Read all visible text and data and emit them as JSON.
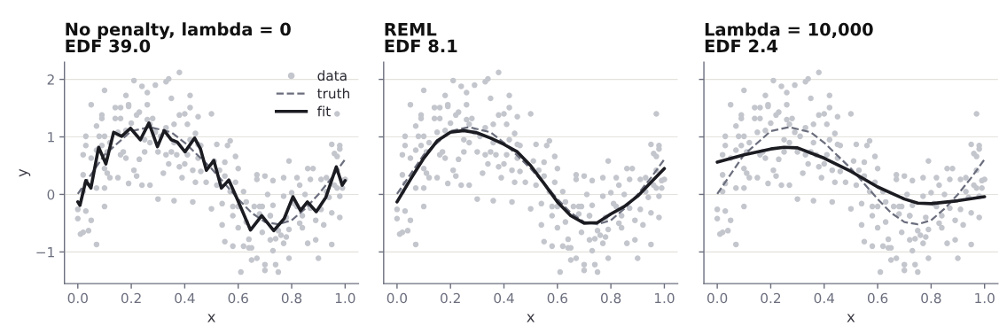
{
  "chart_data": [
    {
      "type": "scatter",
      "title": "No penalty, lambda = 0",
      "subtitle": "EDF 39.0",
      "xlabel": "x",
      "ylabel": "y",
      "xlim": [
        -0.05,
        1.05
      ],
      "ylim": [
        -1.55,
        2.3
      ],
      "xticks": [
        {
          "value": 0,
          "label": "0.0"
        },
        {
          "value": 0.2,
          "label": "0.2"
        },
        {
          "value": 0.4,
          "label": "0.4"
        },
        {
          "value": 0.6,
          "label": "0.6"
        },
        {
          "value": 0.8,
          "label": "0.8"
        },
        {
          "value": 1,
          "label": "1.0"
        }
      ],
      "yticks": [
        {
          "value": -1,
          "label": "−1"
        },
        0,
        1,
        2
      ],
      "grid": "y",
      "legend": "top right",
      "series": [
        {
          "name": "data",
          "marker": "circle",
          "color": "#c4c6cd",
          "x": [
            0.0,
            0.0,
            0.02,
            0.03,
            0.01,
            0.02,
            0.04,
            0.05,
            0.07,
            0.02,
            0.03,
            0.03,
            0.05,
            0.05,
            0.02,
            0.03,
            0.07,
            0.07,
            0.07,
            0.08,
            0.09,
            0.09,
            0.1,
            0.09,
            0.1,
            0.1,
            0.1,
            0.1,
            0.11,
            0.11,
            0.12,
            0.12,
            0.14,
            0.14,
            0.15,
            0.15,
            0.16,
            0.16,
            0.16,
            0.17,
            0.18,
            0.18,
            0.18,
            0.19,
            0.19,
            0.19,
            0.2,
            0.21,
            0.21,
            0.22,
            0.22,
            0.23,
            0.23,
            0.24,
            0.24,
            0.25,
            0.25,
            0.26,
            0.26,
            0.26,
            0.27,
            0.27,
            0.27,
            0.28,
            0.29,
            0.29,
            0.3,
            0.3,
            0.31,
            0.32,
            0.33,
            0.33,
            0.33,
            0.34,
            0.34,
            0.35,
            0.35,
            0.36,
            0.36,
            0.36,
            0.37,
            0.38,
            0.38,
            0.38,
            0.39,
            0.4,
            0.4,
            0.41,
            0.41,
            0.42,
            0.42,
            0.42,
            0.43,
            0.43,
            0.44,
            0.44,
            0.45,
            0.45,
            0.45,
            0.46,
            0.46,
            0.48,
            0.5,
            0.5,
            0.51,
            0.52,
            0.52,
            0.53,
            0.54,
            0.54,
            0.55,
            0.55,
            0.55,
            0.56,
            0.57,
            0.57,
            0.58,
            0.58,
            0.58,
            0.59,
            0.59,
            0.6,
            0.6,
            0.6,
            0.61,
            0.62,
            0.62,
            0.63,
            0.63,
            0.64,
            0.64,
            0.65,
            0.65,
            0.66,
            0.67,
            0.67,
            0.67,
            0.68,
            0.68,
            0.69,
            0.69,
            0.7,
            0.7,
            0.7,
            0.71,
            0.72,
            0.72,
            0.72,
            0.73,
            0.73,
            0.73,
            0.74,
            0.74,
            0.75,
            0.75,
            0.76,
            0.77,
            0.77,
            0.77,
            0.78,
            0.78,
            0.79,
            0.79,
            0.79,
            0.8,
            0.81,
            0.82,
            0.82,
            0.83,
            0.83,
            0.84,
            0.84,
            0.85,
            0.86,
            0.86,
            0.87,
            0.87,
            0.88,
            0.89,
            0.89,
            0.9,
            0.91,
            0.91,
            0.92,
            0.93,
            0.93,
            0.94,
            0.95,
            0.95,
            0.95,
            0.96,
            0.96,
            0.97,
            0.97,
            0.97,
            0.97,
            0.98,
            0.98,
            0.98,
            0.99,
            0.99,
            1.0,
            0.98
          ],
          "values": [
            -0.26,
            -0.42,
            0.34,
            -0.29,
            -0.69,
            -0.66,
            -0.63,
            -0.45,
            -0.87,
            0.69,
            1.01,
            0.85,
            1.56,
            0.63,
            0.05,
            0.19,
            0.11,
            1.19,
            0.77,
            1.01,
            1.32,
            1.38,
            1.81,
            0.85,
            0.45,
            0.11,
            -0.21,
            1.01,
            0.37,
            0.74,
            0.29,
            0.9,
            1.51,
            1.32,
            1.08,
            0.29,
            0.69,
            1.32,
            1.51,
            0.74,
            1.72,
            1.11,
            0.63,
            1.53,
            0.19,
            1.56,
            1.24,
            0.42,
            1.98,
            1.38,
            0.32,
            1.43,
            0.61,
            0.16,
            1.88,
            0.95,
            0.74,
            1.56,
            1.3,
            1.77,
            0.16,
            0.9,
            1.22,
            1.32,
            1.9,
            1.08,
            0.74,
            -0.08,
            1.01,
            0.37,
            1.96,
            1.16,
            0.69,
            2.01,
            0.53,
            0.74,
            1.67,
            -0.11,
            1.22,
            0.9,
            0.69,
            2.12,
            1.38,
            0.48,
            0.29,
            1.4,
            0.53,
            1.22,
            0.69,
            0.95,
            1.51,
            1.72,
            -0.13,
            0.42,
            1.06,
            0.21,
            1.35,
            0.87,
            0.63,
            0.85,
            0.4,
            0.21,
            1.4,
            -0.25,
            0.58,
            0.16,
            0.87,
            0.42,
            -0.53,
            -0.16,
            0.56,
            -0.82,
            0.32,
            0.85,
            0.05,
            0.93,
            -0.37,
            -0.9,
            -0.21,
            0.66,
            0.21,
            -0.58,
            0.45,
            -0.21,
            -1.35,
            0.05,
            -0.9,
            -0.48,
            -0.13,
            -0.78,
            -0.93,
            -1.14,
            -0.93,
            -0.21,
            0.34,
            0.26,
            -1.11,
            -0.34,
            -0.21,
            -0.21,
            -0.66,
            -1.22,
            0.32,
            -1.32,
            0.0,
            -0.37,
            -0.37,
            -0.79,
            0.24,
            -0.98,
            -0.19,
            -1.22,
            -0.77,
            -1.35,
            -0.63,
            -0.71,
            0.29,
            -0.85,
            -0.03,
            -0.4,
            -0.74,
            -0.61,
            0.58,
            -1.11,
            0.03,
            -0.16,
            0.29,
            -0.21,
            0.16,
            -0.5,
            -0.37,
            -0.58,
            0.0,
            -0.85,
            0.45,
            0.26,
            -0.24,
            0.45,
            -0.79,
            -0.45,
            -1.11,
            0.26,
            -0.26,
            -0.53,
            0.29,
            0.05,
            -0.05,
            -0.32,
            -0.87,
            0.87,
            0.71,
            0.16,
            0.66,
            1.4,
            0.42,
            0.11,
            0.79,
            0.85,
            -0.03,
            0.24,
            0.11,
            0.26,
            -0.4
          ]
        },
        {
          "name": "truth",
          "type": "line",
          "line_style": "dashed",
          "color": "#6b6e7d",
          "x": [
            0,
            0.1,
            0.2,
            0.27,
            0.35,
            0.4,
            0.5,
            0.6,
            0.65,
            0.7,
            0.75,
            0.8,
            0.85,
            0.9,
            0.95,
            1.0
          ],
          "values": [
            0.01,
            0.69,
            1.1,
            1.17,
            1.08,
            0.9,
            0.45,
            -0.08,
            -0.32,
            -0.48,
            -0.52,
            -0.45,
            -0.25,
            0.0,
            0.29,
            0.61
          ]
        },
        {
          "name": "fit",
          "type": "line",
          "line_style": "solid",
          "color": "#1b1b22",
          "x": [
            0,
            0.008,
            0.03,
            0.049,
            0.078,
            0.105,
            0.134,
            0.164,
            0.197,
            0.234,
            0.266,
            0.298,
            0.323,
            0.35,
            0.372,
            0.401,
            0.437,
            0.459,
            0.481,
            0.509,
            0.537,
            0.565,
            0.599,
            0.646,
            0.688,
            0.733,
            0.772,
            0.805,
            0.833,
            0.859,
            0.892,
            0.928,
            0.967,
            0.989,
            1.0
          ],
          "values": [
            -0.13,
            -0.19,
            0.24,
            0.11,
            0.82,
            0.53,
            1.08,
            1.01,
            1.15,
            0.95,
            1.24,
            0.83,
            1.11,
            0.95,
            0.91,
            0.74,
            0.98,
            0.79,
            0.42,
            0.59,
            0.11,
            0.25,
            -0.11,
            -0.62,
            -0.37,
            -0.63,
            -0.42,
            -0.04,
            -0.28,
            -0.13,
            -0.3,
            -0.05,
            0.48,
            0.16,
            0.24
          ]
        }
      ]
    },
    {
      "type": "scatter",
      "title": "REML",
      "subtitle": "EDF 8.1",
      "xlabel": "x",
      "xlim": [
        -0.05,
        1.05
      ],
      "ylim": [
        -1.55,
        2.3
      ],
      "xticks": [
        {
          "value": 0,
          "label": "0.0"
        },
        {
          "value": 0.2,
          "label": "0.2"
        },
        {
          "value": 0.4,
          "label": "0.4"
        },
        {
          "value": 0.6,
          "label": "0.6"
        },
        {
          "value": 0.8,
          "label": "0.8"
        },
        {
          "value": 1,
          "label": "1.0"
        }
      ],
      "yticks": [
        -1,
        0,
        1,
        2
      ],
      "grid": "y",
      "tick_labels": "x",
      "series": [
        {
          "marker": "circle",
          "color": "#c4c6cd",
          "x": [
            0.0,
            0.0,
            0.02,
            0.03,
            0.01,
            0.02,
            0.04,
            0.05,
            0.07,
            0.02,
            0.03,
            0.03,
            0.05,
            0.05,
            0.02,
            0.03,
            0.07,
            0.07,
            0.07,
            0.08,
            0.09,
            0.09,
            0.1,
            0.09,
            0.1,
            0.1,
            0.1,
            0.1,
            0.11,
            0.11,
            0.12,
            0.12,
            0.14,
            0.14,
            0.15,
            0.15,
            0.16,
            0.16,
            0.16,
            0.17,
            0.18,
            0.18,
            0.18,
            0.19,
            0.19,
            0.19,
            0.2,
            0.21,
            0.21,
            0.22,
            0.22,
            0.23,
            0.23,
            0.24,
            0.24,
            0.25,
            0.25,
            0.26,
            0.26,
            0.26,
            0.27,
            0.27,
            0.27,
            0.28,
            0.29,
            0.29,
            0.3,
            0.3,
            0.31,
            0.32,
            0.33,
            0.33,
            0.33,
            0.34,
            0.34,
            0.35,
            0.35,
            0.36,
            0.36,
            0.36,
            0.37,
            0.38,
            0.38,
            0.38,
            0.39,
            0.4,
            0.4,
            0.41,
            0.41,
            0.42,
            0.42,
            0.42,
            0.43,
            0.43,
            0.44,
            0.44,
            0.45,
            0.45,
            0.45,
            0.46,
            0.46,
            0.48,
            0.5,
            0.5,
            0.51,
            0.52,
            0.52,
            0.53,
            0.54,
            0.54,
            0.55,
            0.55,
            0.55,
            0.56,
            0.57,
            0.57,
            0.58,
            0.58,
            0.58,
            0.59,
            0.59,
            0.6,
            0.6,
            0.6,
            0.61,
            0.62,
            0.62,
            0.63,
            0.63,
            0.64,
            0.64,
            0.65,
            0.65,
            0.66,
            0.67,
            0.67,
            0.67,
            0.68,
            0.68,
            0.69,
            0.69,
            0.7,
            0.7,
            0.7,
            0.71,
            0.72,
            0.72,
            0.72,
            0.73,
            0.73,
            0.73,
            0.74,
            0.74,
            0.75,
            0.75,
            0.76,
            0.77,
            0.77,
            0.77,
            0.78,
            0.78,
            0.79,
            0.79,
            0.79,
            0.8,
            0.81,
            0.82,
            0.82,
            0.83,
            0.83,
            0.84,
            0.84,
            0.85,
            0.86,
            0.86,
            0.87,
            0.87,
            0.88,
            0.89,
            0.89,
            0.9,
            0.91,
            0.91,
            0.92,
            0.93,
            0.93,
            0.94,
            0.95,
            0.95,
            0.95,
            0.96,
            0.96,
            0.97,
            0.97,
            0.97,
            0.97,
            0.98,
            0.98,
            0.98,
            0.99,
            0.99,
            1.0,
            0.98
          ],
          "values": [
            -0.26,
            -0.42,
            0.34,
            -0.29,
            -0.69,
            -0.66,
            -0.63,
            -0.45,
            -0.87,
            0.69,
            1.01,
            0.85,
            1.56,
            0.63,
            0.05,
            0.19,
            0.11,
            1.19,
            0.77,
            1.01,
            1.32,
            1.38,
            1.81,
            0.85,
            0.45,
            0.11,
            -0.21,
            1.01,
            0.37,
            0.74,
            0.29,
            0.9,
            1.51,
            1.32,
            1.08,
            0.29,
            0.69,
            1.32,
            1.51,
            0.74,
            1.72,
            1.11,
            0.63,
            1.53,
            0.19,
            1.56,
            1.24,
            0.42,
            1.98,
            1.38,
            0.32,
            1.43,
            0.61,
            0.16,
            1.88,
            0.95,
            0.74,
            1.56,
            1.3,
            1.77,
            0.16,
            0.9,
            1.22,
            1.32,
            1.9,
            1.08,
            0.74,
            -0.08,
            1.01,
            0.37,
            1.96,
            1.16,
            0.69,
            2.01,
            0.53,
            0.74,
            1.67,
            -0.11,
            1.22,
            0.9,
            0.69,
            2.12,
            1.38,
            0.48,
            0.29,
            1.4,
            0.53,
            1.22,
            0.69,
            0.95,
            1.51,
            1.72,
            -0.13,
            0.42,
            1.06,
            0.21,
            1.35,
            0.87,
            0.63,
            0.85,
            0.4,
            0.21,
            1.4,
            -0.25,
            0.58,
            0.16,
            0.87,
            0.42,
            -0.53,
            -0.16,
            0.56,
            -0.82,
            0.32,
            0.85,
            0.05,
            0.93,
            -0.37,
            -0.9,
            -0.21,
            0.66,
            0.21,
            -0.58,
            0.45,
            -0.21,
            -1.35,
            0.05,
            -0.9,
            -0.48,
            -0.13,
            -0.78,
            -0.93,
            -1.14,
            -0.93,
            -0.21,
            0.34,
            0.26,
            -1.11,
            -0.34,
            -0.21,
            -0.21,
            -0.66,
            -1.22,
            0.32,
            -1.32,
            0.0,
            -0.37,
            -0.37,
            -0.79,
            0.24,
            -0.98,
            -0.19,
            -1.22,
            -0.77,
            -1.35,
            -0.63,
            -0.71,
            0.29,
            -0.85,
            -0.03,
            -0.4,
            -0.74,
            -0.61,
            0.58,
            -1.11,
            0.03,
            -0.16,
            0.29,
            -0.21,
            0.16,
            -0.5,
            -0.37,
            -0.58,
            0.0,
            -0.85,
            0.45,
            0.26,
            -0.24,
            0.45,
            -0.79,
            -0.45,
            -1.11,
            0.26,
            -0.26,
            -0.53,
            0.29,
            0.05,
            -0.05,
            -0.32,
            -0.87,
            0.87,
            0.71,
            0.16,
            0.66,
            1.4,
            0.42,
            0.11,
            0.79,
            0.85,
            -0.03,
            0.24,
            0.11,
            0.26,
            -0.4
          ]
        },
        {
          "type": "line",
          "line_style": "dashed",
          "color": "#6b6e7d",
          "x": [
            0,
            0.1,
            0.2,
            0.27,
            0.35,
            0.4,
            0.5,
            0.6,
            0.65,
            0.7,
            0.75,
            0.8,
            0.85,
            0.9,
            0.95,
            1.0
          ],
          "values": [
            0.01,
            0.69,
            1.1,
            1.17,
            1.08,
            0.9,
            0.45,
            -0.08,
            -0.32,
            -0.48,
            -0.52,
            -0.45,
            -0.25,
            0.0,
            0.29,
            0.61
          ]
        },
        {
          "type": "line",
          "line_style": "solid",
          "color": "#1b1b22",
          "x": [
            0,
            0.05,
            0.1,
            0.15,
            0.2,
            0.25,
            0.3,
            0.35,
            0.4,
            0.45,
            0.5,
            0.55,
            0.6,
            0.65,
            0.7,
            0.75,
            0.8,
            0.85,
            0.9,
            0.95,
            1.0
          ],
          "values": [
            -0.13,
            0.26,
            0.63,
            0.93,
            1.08,
            1.11,
            1.07,
            0.98,
            0.87,
            0.74,
            0.5,
            0.19,
            -0.13,
            -0.37,
            -0.5,
            -0.49,
            -0.34,
            -0.21,
            -0.03,
            0.21,
            0.45
          ]
        }
      ]
    },
    {
      "type": "scatter",
      "title": "Lambda = 10,000",
      "subtitle": "EDF 2.4",
      "xlabel": "x",
      "xlim": [
        -0.05,
        1.05
      ],
      "ylim": [
        -1.55,
        2.3
      ],
      "xticks": [
        {
          "value": 0,
          "label": "0.0"
        },
        {
          "value": 0.2,
          "label": "0.2"
        },
        {
          "value": 0.4,
          "label": "0.4"
        },
        {
          "value": 0.6,
          "label": "0.6"
        },
        {
          "value": 0.8,
          "label": "0.8"
        },
        {
          "value": 1,
          "label": "1.0"
        }
      ],
      "yticks": [
        -1,
        0,
        1,
        2
      ],
      "grid": "y",
      "tick_labels": "x",
      "series": [
        {
          "marker": "circle",
          "color": "#c4c6cd",
          "x": [
            0.0,
            0.0,
            0.02,
            0.03,
            0.01,
            0.02,
            0.04,
            0.05,
            0.07,
            0.02,
            0.03,
            0.03,
            0.05,
            0.05,
            0.02,
            0.03,
            0.07,
            0.07,
            0.07,
            0.08,
            0.09,
            0.09,
            0.1,
            0.09,
            0.1,
            0.1,
            0.1,
            0.1,
            0.11,
            0.11,
            0.12,
            0.12,
            0.14,
            0.14,
            0.15,
            0.15,
            0.16,
            0.16,
            0.16,
            0.17,
            0.18,
            0.18,
            0.18,
            0.19,
            0.19,
            0.19,
            0.2,
            0.21,
            0.21,
            0.22,
            0.22,
            0.23,
            0.23,
            0.24,
            0.24,
            0.25,
            0.25,
            0.26,
            0.26,
            0.26,
            0.27,
            0.27,
            0.27,
            0.28,
            0.29,
            0.29,
            0.3,
            0.3,
            0.31,
            0.32,
            0.33,
            0.33,
            0.33,
            0.34,
            0.34,
            0.35,
            0.35,
            0.36,
            0.36,
            0.36,
            0.37,
            0.38,
            0.38,
            0.38,
            0.39,
            0.4,
            0.4,
            0.41,
            0.41,
            0.42,
            0.42,
            0.42,
            0.43,
            0.43,
            0.44,
            0.44,
            0.45,
            0.45,
            0.45,
            0.46,
            0.46,
            0.48,
            0.5,
            0.5,
            0.51,
            0.52,
            0.52,
            0.53,
            0.54,
            0.54,
            0.55,
            0.55,
            0.55,
            0.56,
            0.57,
            0.57,
            0.58,
            0.58,
            0.58,
            0.59,
            0.59,
            0.6,
            0.6,
            0.6,
            0.61,
            0.62,
            0.62,
            0.63,
            0.63,
            0.64,
            0.64,
            0.65,
            0.65,
            0.66,
            0.67,
            0.67,
            0.67,
            0.68,
            0.68,
            0.69,
            0.69,
            0.7,
            0.7,
            0.7,
            0.71,
            0.72,
            0.72,
            0.72,
            0.73,
            0.73,
            0.73,
            0.74,
            0.74,
            0.75,
            0.75,
            0.76,
            0.77,
            0.77,
            0.77,
            0.78,
            0.78,
            0.79,
            0.79,
            0.79,
            0.8,
            0.81,
            0.82,
            0.82,
            0.83,
            0.83,
            0.84,
            0.84,
            0.85,
            0.86,
            0.86,
            0.87,
            0.87,
            0.88,
            0.89,
            0.89,
            0.9,
            0.91,
            0.91,
            0.92,
            0.93,
            0.93,
            0.94,
            0.95,
            0.95,
            0.95,
            0.96,
            0.96,
            0.97,
            0.97,
            0.97,
            0.97,
            0.98,
            0.98,
            0.98,
            0.99,
            0.99,
            1.0,
            0.98
          ],
          "values": [
            -0.26,
            -0.42,
            0.34,
            -0.29,
            -0.69,
            -0.66,
            -0.63,
            -0.45,
            -0.87,
            0.69,
            1.01,
            0.85,
            1.56,
            0.63,
            0.05,
            0.19,
            0.11,
            1.19,
            0.77,
            1.01,
            1.32,
            1.38,
            1.81,
            0.85,
            0.45,
            0.11,
            -0.21,
            1.01,
            0.37,
            0.74,
            0.29,
            0.9,
            1.51,
            1.32,
            1.08,
            0.29,
            0.69,
            1.32,
            1.51,
            0.74,
            1.72,
            1.11,
            0.63,
            1.53,
            0.19,
            1.56,
            1.24,
            0.42,
            1.98,
            1.38,
            0.32,
            1.43,
            0.61,
            0.16,
            1.88,
            0.95,
            0.74,
            1.56,
            1.3,
            1.77,
            0.16,
            0.9,
            1.22,
            1.32,
            1.9,
            1.08,
            0.74,
            -0.08,
            1.01,
            0.37,
            1.96,
            1.16,
            0.69,
            2.01,
            0.53,
            0.74,
            1.67,
            -0.11,
            1.22,
            0.9,
            0.69,
            2.12,
            1.38,
            0.48,
            0.29,
            1.4,
            0.53,
            1.22,
            0.69,
            0.95,
            1.51,
            1.72,
            -0.13,
            0.42,
            1.06,
            0.21,
            1.35,
            0.87,
            0.63,
            0.85,
            0.4,
            0.21,
            1.4,
            -0.25,
            0.58,
            0.16,
            0.87,
            0.42,
            -0.53,
            -0.16,
            0.56,
            -0.82,
            0.32,
            0.85,
            0.05,
            0.93,
            -0.37,
            -0.9,
            -0.21,
            0.66,
            0.21,
            -0.58,
            0.45,
            -0.21,
            -1.35,
            0.05,
            -0.9,
            -0.48,
            -0.13,
            -0.78,
            -0.93,
            -1.14,
            -0.93,
            -0.21,
            0.34,
            0.26,
            -1.11,
            -0.34,
            -0.21,
            -0.21,
            -0.66,
            -1.22,
            0.32,
            -1.32,
            0.0,
            -0.37,
            -0.37,
            -0.79,
            0.24,
            -0.98,
            -0.19,
            -1.22,
            -0.77,
            -1.35,
            -0.63,
            -0.71,
            0.29,
            -0.85,
            -0.03,
            -0.4,
            -0.74,
            -0.61,
            0.58,
            -1.11,
            0.03,
            -0.16,
            0.29,
            -0.21,
            0.16,
            -0.5,
            -0.37,
            -0.58,
            0.0,
            -0.85,
            0.45,
            0.26,
            -0.24,
            0.45,
            -0.79,
            -0.45,
            -1.11,
            0.26,
            -0.26,
            -0.53,
            0.29,
            0.05,
            -0.05,
            -0.32,
            -0.87,
            0.87,
            0.71,
            0.16,
            0.66,
            1.4,
            0.42,
            0.11,
            0.79,
            0.85,
            -0.03,
            0.24,
            0.11,
            0.26,
            -0.4
          ]
        },
        {
          "type": "line",
          "line_style": "dashed",
          "color": "#6b6e7d",
          "x": [
            0,
            0.1,
            0.2,
            0.27,
            0.35,
            0.4,
            0.5,
            0.6,
            0.65,
            0.7,
            0.75,
            0.8,
            0.85,
            0.9,
            0.95,
            1.0
          ],
          "values": [
            0.01,
            0.69,
            1.1,
            1.17,
            1.08,
            0.9,
            0.45,
            -0.08,
            -0.32,
            -0.48,
            -0.52,
            -0.45,
            -0.25,
            0.0,
            0.29,
            0.61
          ]
        },
        {
          "type": "line",
          "line_style": "solid",
          "color": "#1b1b22",
          "x": [
            0,
            0.1,
            0.2,
            0.25,
            0.3,
            0.4,
            0.5,
            0.6,
            0.7,
            0.75,
            0.8,
            0.9,
            1.0
          ],
          "values": [
            0.56,
            0.69,
            0.79,
            0.82,
            0.81,
            0.63,
            0.4,
            0.13,
            -0.08,
            -0.15,
            -0.16,
            -0.11,
            -0.04
          ]
        }
      ]
    }
  ]
}
